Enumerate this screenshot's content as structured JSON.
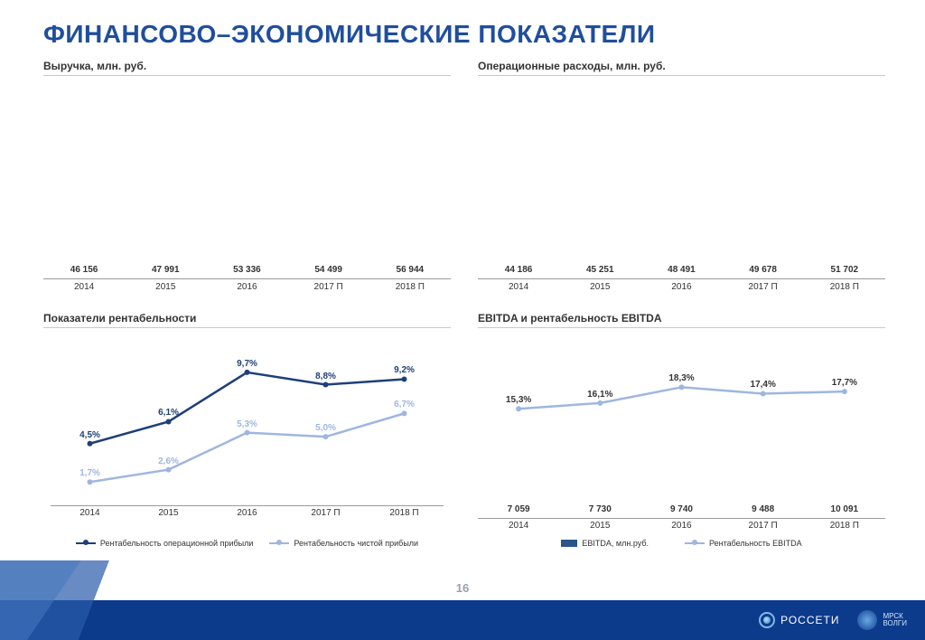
{
  "page": {
    "title": "ФИНАНСОВО–ЭКОНОМИЧЕСКИЕ ПОКАЗАТЕЛИ",
    "number": "16",
    "background": "#ffffff",
    "accent": "#1f4e9c"
  },
  "categories": [
    "2014",
    "2015",
    "2016",
    "2017 П",
    "2018 П"
  ],
  "colors": {
    "bar": "#2a5688",
    "line_dark": "#1f3f79",
    "line_light": "#9fb6e0",
    "axis": "#9a9a9a",
    "footer": "#0d3b8c"
  },
  "revenue": {
    "title": "Выручка, млн. руб.",
    "type": "bar",
    "values": [
      46156,
      47991,
      53336,
      54499,
      56944
    ],
    "labels": [
      "46 156",
      "47 991",
      "53 336",
      "54 499",
      "56 944"
    ],
    "ymax": 60000,
    "bar_color": "#2a5688",
    "label_fontsize": 10
  },
  "opex": {
    "title": "Операционные расходы, млн. руб.",
    "type": "bar",
    "values": [
      44186,
      45251,
      48491,
      49678,
      51702
    ],
    "labels": [
      "44 186",
      "45 251",
      "48 491",
      "49 678",
      "51 702"
    ],
    "ymax": 60000,
    "bar_color": "#2a5688",
    "label_fontsize": 10
  },
  "profitability": {
    "title": "Показатели рентабельности",
    "type": "line",
    "ylim": [
      0,
      12
    ],
    "series": [
      {
        "name": "Рентабельность операционной прибыли",
        "color": "#1f3f79",
        "values": [
          4.5,
          6.1,
          9.7,
          8.8,
          9.2
        ],
        "labels": [
          "4,5%",
          "6,1%",
          "9,7%",
          "8,8%",
          "9,2%"
        ],
        "line_width": 2.5,
        "marker": "circle",
        "marker_size": 6
      },
      {
        "name": "Рентабельность чистой прибыли",
        "color": "#9fb6e0",
        "values": [
          1.7,
          2.6,
          5.3,
          5.0,
          6.7
        ],
        "labels": [
          "1,7%",
          "2,6%",
          "5,3%",
          "5,0%",
          "6,7%"
        ],
        "line_width": 2.5,
        "marker": "circle",
        "marker_size": 6
      }
    ]
  },
  "ebitda": {
    "title": "EBITDA и рентабельность EBITDA",
    "type": "combo",
    "bar_values": [
      7059,
      7730,
      9740,
      9488,
      10091
    ],
    "bar_labels": [
      "7 059",
      "7 730",
      "9 740",
      "9 488",
      "10 091"
    ],
    "bar_ymax": 20000,
    "bar_color": "#2a5688",
    "bar_legend": "EBITDA, млн.руб.",
    "line_values": [
      15.3,
      16.1,
      18.3,
      17.4,
      17.7
    ],
    "line_labels": [
      "15,3%",
      "16,1%",
      "18,3%",
      "17,4%",
      "17,7%"
    ],
    "line_ylim": [
      0,
      25
    ],
    "line_color": "#9fb6e0",
    "line_legend": "Рентабельность EBITDA",
    "line_width": 2.5,
    "marker": "circle",
    "marker_size": 6
  },
  "footer": {
    "brand1": "РОССЕТИ",
    "brand2_line1": "МРСК",
    "brand2_line2": "ВОЛГИ"
  }
}
